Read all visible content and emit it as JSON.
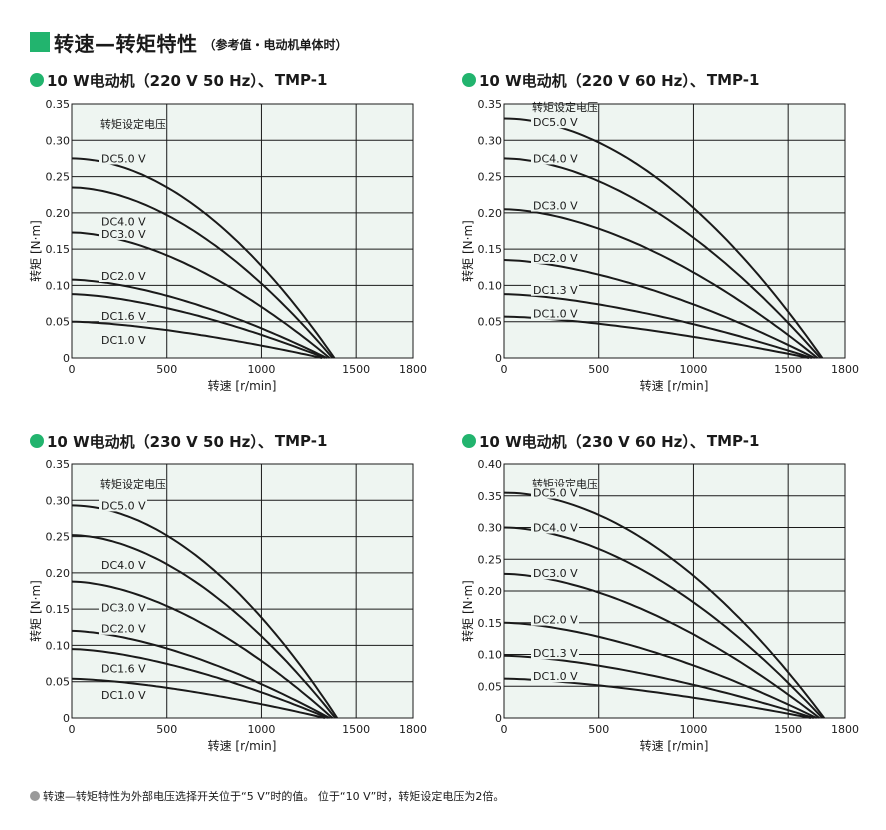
{
  "page": {
    "title": "转速—转矩特性",
    "subtitle": "（参考值・电动机单体时）",
    "footnote": "转速—转矩特性为外部电压选择开关位于“5 V”时的值。 位于“10 V”时，转矩设定电压为2倍。"
  },
  "colors": {
    "accent": "#22b46e",
    "plot_bg": "#eef5f1",
    "curve": "#1a1a1a",
    "footnote_dot": "#9a9a9a"
  },
  "charts": [
    {
      "heading": "10 W电动机（220 V 50 Hz）、",
      "model": "TMP-1"
    },
    {
      "heading": "10 W电动机（220 V 60 Hz）、",
      "model": "TMP-1"
    },
    {
      "heading": "10 W电动机（230 V 50 Hz）、",
      "model": "TMP-1"
    },
    {
      "heading": "10 W电动机（230 V 60 Hz）、",
      "model": "TMP-1"
    }
  ],
  "chart_data": [
    {
      "type": "line",
      "xlabel": "转速 [r/min]",
      "ylabel": "转矩 [N·m]",
      "xlim": [
        0,
        1800
      ],
      "ylim": [
        0,
        0.35
      ],
      "xticks": [
        "0",
        "500",
        "1000",
        "1500",
        "1800"
      ],
      "yticks": [
        "0",
        "0.05",
        "0.10",
        "0.15",
        "0.20",
        "0.25",
        "0.30",
        "0.35"
      ],
      "grid": true,
      "legend_title": "转矩设定电压",
      "series": [
        {
          "name": "DC5.0 V",
          "t0": 0.275,
          "x0": 1385,
          "p": 1.9,
          "label_y": 0.275
        },
        {
          "name": "DC4.0 V",
          "t0": 0.235,
          "x0": 1375,
          "p": 1.8,
          "label_y": 0.188
        },
        {
          "name": "DC3.0 V",
          "t0": 0.173,
          "x0": 1360,
          "p": 1.7,
          "label_y": 0.171
        },
        {
          "name": "DC2.0 V",
          "t0": 0.108,
          "x0": 1345,
          "p": 1.6,
          "label_y": 0.113
        },
        {
          "name": "DC1.6 V",
          "t0": 0.088,
          "x0": 1335,
          "p": 1.55,
          "label_y": 0.058
        },
        {
          "name": "DC1.0 V",
          "t0": 0.05,
          "x0": 1320,
          "p": 1.5,
          "label_y": 0.025
        }
      ]
    },
    {
      "type": "line",
      "xlabel": "转速 [r/min]",
      "ylabel": "转矩 [N·m]",
      "xlim": [
        0,
        1800
      ],
      "ylim": [
        0,
        0.35
      ],
      "xticks": [
        "0",
        "500",
        "1000",
        "1500",
        "1800"
      ],
      "yticks": [
        "0",
        "0.05",
        "0.10",
        "0.15",
        "0.20",
        "0.25",
        "0.30",
        "0.35"
      ],
      "grid": true,
      "legend_title": "转矩设定电压",
      "series": [
        {
          "name": "DC5.0 V",
          "t0": 0.33,
          "x0": 1680,
          "p": 1.9,
          "label_y": 0.325
        },
        {
          "name": "DC4.0 V",
          "t0": 0.275,
          "x0": 1670,
          "p": 1.8,
          "label_y": 0.275
        },
        {
          "name": "DC3.0 V",
          "t0": 0.205,
          "x0": 1655,
          "p": 1.7,
          "label_y": 0.21
        },
        {
          "name": "DC2.0 V",
          "t0": 0.135,
          "x0": 1640,
          "p": 1.6,
          "label_y": 0.138
        },
        {
          "name": "DC1.3 V",
          "t0": 0.088,
          "x0": 1625,
          "p": 1.55,
          "label_y": 0.094
        },
        {
          "name": "DC1.0 V",
          "t0": 0.057,
          "x0": 1610,
          "p": 1.5,
          "label_y": 0.061
        }
      ]
    },
    {
      "type": "line",
      "xlabel": "转速 [r/min]",
      "ylabel": "转矩 [N·m]",
      "xlim": [
        0,
        1800
      ],
      "ylim": [
        0,
        0.35
      ],
      "xticks": [
        "0",
        "500",
        "1000",
        "1500",
        "1800"
      ],
      "yticks": [
        "0",
        "0.05",
        "0.10",
        "0.15",
        "0.20",
        "0.25",
        "0.30",
        "0.35"
      ],
      "grid": true,
      "legend_title": "转矩设定电压",
      "series": [
        {
          "name": "DC5.0 V",
          "t0": 0.293,
          "x0": 1400,
          "p": 1.9,
          "label_y": 0.293
        },
        {
          "name": "DC4.0 V",
          "t0": 0.252,
          "x0": 1390,
          "p": 1.8,
          "label_y": 0.211
        },
        {
          "name": "DC3.0 V",
          "t0": 0.188,
          "x0": 1375,
          "p": 1.7,
          "label_y": 0.152
        },
        {
          "name": "DC2.0 V",
          "t0": 0.12,
          "x0": 1360,
          "p": 1.6,
          "label_y": 0.123
        },
        {
          "name": "DC1.6 V",
          "t0": 0.095,
          "x0": 1350,
          "p": 1.55,
          "label_y": 0.068
        },
        {
          "name": "DC1.0 V",
          "t0": 0.054,
          "x0": 1335,
          "p": 1.5,
          "label_y": 0.032
        }
      ]
    },
    {
      "type": "line",
      "xlabel": "转速 [r/min]",
      "ylabel": "转矩 [N·m]",
      "xlim": [
        0,
        1800
      ],
      "ylim": [
        0,
        0.4
      ],
      "xticks": [
        "0",
        "500",
        "1000",
        "1500",
        "1800"
      ],
      "yticks": [
        "0",
        "0.05",
        "0.10",
        "0.15",
        "0.20",
        "0.25",
        "0.30",
        "0.35",
        "0.40"
      ],
      "grid": true,
      "legend_title": "转矩设定电压",
      "series": [
        {
          "name": "DC5.0 V",
          "t0": 0.355,
          "x0": 1690,
          "p": 1.9,
          "label_y": 0.355
        },
        {
          "name": "DC4.0 V",
          "t0": 0.3,
          "x0": 1680,
          "p": 1.8,
          "label_y": 0.3
        },
        {
          "name": "DC3.0 V",
          "t0": 0.227,
          "x0": 1665,
          "p": 1.7,
          "label_y": 0.228
        },
        {
          "name": "DC2.0 V",
          "t0": 0.15,
          "x0": 1650,
          "p": 1.6,
          "label_y": 0.155
        },
        {
          "name": "DC1.3 V",
          "t0": 0.098,
          "x0": 1635,
          "p": 1.55,
          "label_y": 0.102
        },
        {
          "name": "DC1.0 V",
          "t0": 0.062,
          "x0": 1620,
          "p": 1.5,
          "label_y": 0.066
        }
      ]
    }
  ]
}
